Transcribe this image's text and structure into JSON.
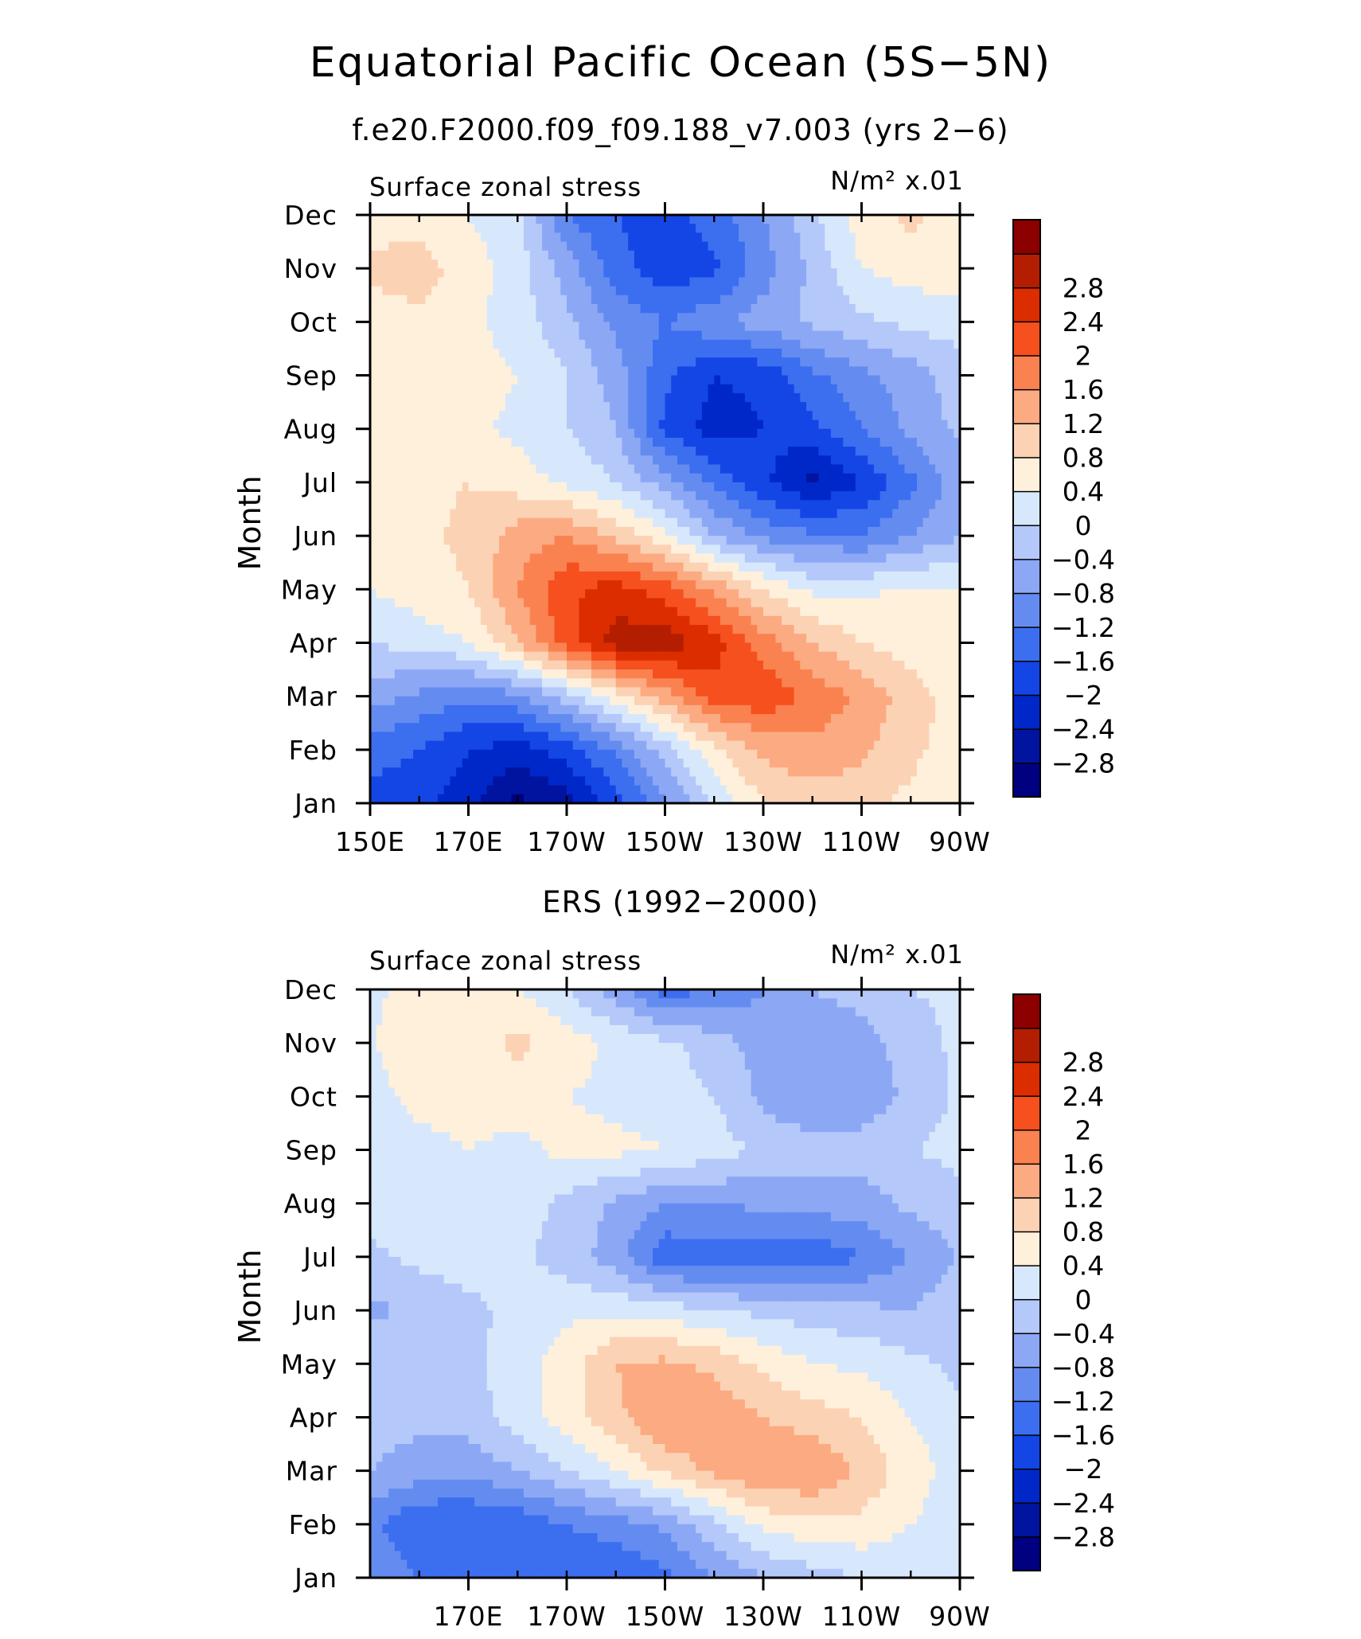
{
  "title": "Equatorial Pacific Ocean (5S−5N)",
  "colors": {
    "scale": [
      "#000080",
      "#0014a0",
      "#0028c8",
      "#1446e6",
      "#3c6ef0",
      "#648cf0",
      "#8ca8f5",
      "#b4c8fa",
      "#d7e8fc",
      "#fff0dc",
      "#fcd2b4",
      "#fcaa82",
      "#fa8250",
      "#f5501e",
      "#dc2d00",
      "#b41e00",
      "#8c0000"
    ]
  },
  "chart_data": [
    {
      "type": "heatmap",
      "panel_title": "f.e20.F2000.f09_f09.188_v7.003 (yrs 2−6)",
      "left_string": "Surface zonal stress",
      "right_string": "N/m² x.01",
      "ylabel": "Month",
      "x_ticks": [
        "150E",
        "170E",
        "170W",
        "150W",
        "130W",
        "110W",
        "90W"
      ],
      "y_ticks": [
        "Jan",
        "Feb",
        "Mar",
        "Apr",
        "May",
        "Jun",
        "Jul",
        "Aug",
        "Sep",
        "Oct",
        "Nov",
        "Dec"
      ],
      "xlim": [
        150,
        270
      ],
      "levels": [
        "2.8",
        "2.4",
        "2",
        "1.6",
        "1.2",
        "0.8",
        "0.4",
        "0",
        "−0.4",
        "−0.8",
        "−1.2",
        "−1.6",
        "−2",
        "−2.4",
        "−2.8"
      ],
      "lon": [
        150,
        160,
        170,
        180,
        190,
        200,
        210,
        220,
        230,
        240,
        250,
        260,
        270
      ],
      "months": [
        "Jan",
        "Feb",
        "Mar",
        "Apr",
        "May",
        "Jun",
        "Jul",
        "Aug",
        "Sep",
        "Oct",
        "Nov",
        "Dec"
      ],
      "grid": [
        [
          -1.8,
          -1.9,
          -2.3,
          -2.9,
          -2.6,
          -1.8,
          -0.9,
          0.1,
          0.8,
          1.0,
          0.9,
          0.7,
          0.5
        ],
        [
          -1.4,
          -1.6,
          -2.0,
          -2.2,
          -1.8,
          -1.1,
          -0.2,
          0.7,
          1.3,
          1.5,
          1.3,
          0.9,
          0.6
        ],
        [
          -0.6,
          -0.9,
          -1.1,
          -0.9,
          -0.2,
          0.6,
          1.4,
          2.2,
          2.3,
          1.9,
          1.5,
          1.0,
          0.6
        ],
        [
          0.0,
          0.2,
          0.4,
          1.2,
          2.2,
          3.0,
          3.1,
          2.6,
          1.8,
          1.2,
          0.8,
          0.6,
          0.4
        ],
        [
          0.4,
          0.6,
          0.8,
          1.6,
          2.3,
          2.6,
          2.2,
          1.5,
          0.8,
          0.3,
          0.3,
          0.5,
          0.4
        ],
        [
          0.5,
          0.7,
          0.9,
          1.4,
          1.6,
          1.1,
          0.5,
          -0.4,
          -0.9,
          -1.1,
          -1.2,
          -0.8,
          -0.4
        ],
        [
          0.6,
          0.7,
          0.8,
          0.6,
          0.3,
          0.0,
          -0.6,
          -1.3,
          -1.9,
          -2.5,
          -2.0,
          -1.3,
          -0.6
        ],
        [
          0.8,
          0.8,
          0.5,
          0.3,
          0.0,
          -0.4,
          -1.7,
          -2.2,
          -2.0,
          -1.7,
          -1.2,
          -0.7,
          -0.3
        ],
        [
          0.7,
          0.8,
          0.6,
          0.4,
          0.0,
          -0.6,
          -1.5,
          -2.0,
          -1.9,
          -1.3,
          -0.9,
          -0.6,
          -0.2
        ],
        [
          0.6,
          0.7,
          0.5,
          0.2,
          -0.3,
          -0.9,
          -1.2,
          -0.9,
          -0.6,
          -0.3,
          -0.1,
          0.1,
          0.2
        ],
        [
          0.9,
          1.0,
          0.6,
          0.2,
          -0.6,
          -1.4,
          -1.9,
          -1.7,
          -1.0,
          -0.3,
          0.4,
          0.6,
          0.6
        ],
        [
          0.6,
          0.6,
          0.4,
          0.1,
          -1.2,
          -1.6,
          -1.8,
          -1.4,
          -0.8,
          -0.1,
          0.6,
          0.9,
          0.6
        ]
      ]
    },
    {
      "type": "heatmap",
      "panel_title": "ERS (1992−2000)",
      "left_string": "Surface zonal stress",
      "right_string": "N/m² x.01",
      "ylabel": "Month",
      "x_ticks": [
        "170E",
        "170W",
        "150W",
        "130W",
        "110W",
        "90W"
      ],
      "y_ticks": [
        "Jan",
        "Feb",
        "Mar",
        "Apr",
        "May",
        "Jun",
        "Jul",
        "Aug",
        "Sep",
        "Oct",
        "Nov",
        "Dec"
      ],
      "xlim": [
        150,
        270
      ],
      "levels": [
        "2.8",
        "2.4",
        "2",
        "1.6",
        "1.2",
        "0.8",
        "0.4",
        "0",
        "−0.4",
        "−0.8",
        "−1.2",
        "−1.6",
        "−2",
        "−2.4",
        "−2.8"
      ],
      "lon": [
        150,
        160,
        170,
        180,
        190,
        200,
        210,
        220,
        230,
        240,
        250,
        260,
        270
      ],
      "months": [
        "Jan",
        "Feb",
        "Mar",
        "Apr",
        "May",
        "Jun",
        "Jul",
        "Aug",
        "Sep",
        "Oct",
        "Nov",
        "Dec"
      ],
      "grid": [
        [
          -0.8,
          -1.2,
          -1.4,
          -1.4,
          -1.5,
          -1.6,
          -1.3,
          -0.8,
          -0.4,
          -0.2,
          0.0,
          0.1,
          0.1
        ],
        [
          -1.1,
          -1.6,
          -1.6,
          -1.5,
          -1.2,
          -1.0,
          -0.7,
          -0.1,
          0.5,
          0.7,
          0.7,
          0.4,
          0.2
        ],
        [
          -0.4,
          -0.6,
          -0.7,
          -0.4,
          0.0,
          0.4,
          0.9,
          1.3,
          1.6,
          1.6,
          1.1,
          0.6,
          0.2
        ],
        [
          -0.2,
          -0.3,
          -0.2,
          0.2,
          0.6,
          1.1,
          1.6,
          1.5,
          1.2,
          1.0,
          0.8,
          0.4,
          0.1
        ],
        [
          -0.1,
          -0.2,
          -0.1,
          0.2,
          0.6,
          1.2,
          1.3,
          1.1,
          0.7,
          0.4,
          0.3,
          0.1,
          -0.1
        ],
        [
          -0.5,
          -0.3,
          -0.1,
          0.1,
          0.3,
          0.3,
          0.2,
          0.0,
          -0.1,
          -0.2,
          -0.3,
          -0.4,
          -0.1
        ],
        [
          -0.1,
          0.1,
          0.2,
          0.1,
          -0.2,
          -0.6,
          -1.5,
          -1.4,
          -1.5,
          -1.5,
          -1.2,
          -0.8,
          -0.4
        ],
        [
          0.2,
          0.3,
          0.3,
          0.2,
          -0.1,
          -0.5,
          -0.8,
          -0.8,
          -0.7,
          -0.6,
          -0.6,
          -0.3,
          -0.1
        ],
        [
          0.2,
          0.3,
          0.4,
          0.3,
          0.5,
          0.5,
          0.4,
          0.2,
          -0.1,
          -0.2,
          -0.2,
          0.0,
          0.1
        ],
        [
          0.3,
          0.5,
          0.5,
          0.6,
          0.4,
          0.3,
          0.2,
          0.0,
          -0.5,
          -0.8,
          -0.7,
          -0.3,
          0.1
        ],
        [
          0.4,
          0.5,
          0.6,
          0.9,
          0.6,
          0.3,
          0.1,
          -0.2,
          -0.6,
          -0.8,
          -0.6,
          -0.2,
          0.1
        ],
        [
          0.3,
          0.6,
          0.5,
          0.4,
          0.0,
          -0.6,
          -1.4,
          -1.2,
          -0.8,
          -0.4,
          -0.2,
          0.0,
          0.1
        ]
      ]
    }
  ]
}
